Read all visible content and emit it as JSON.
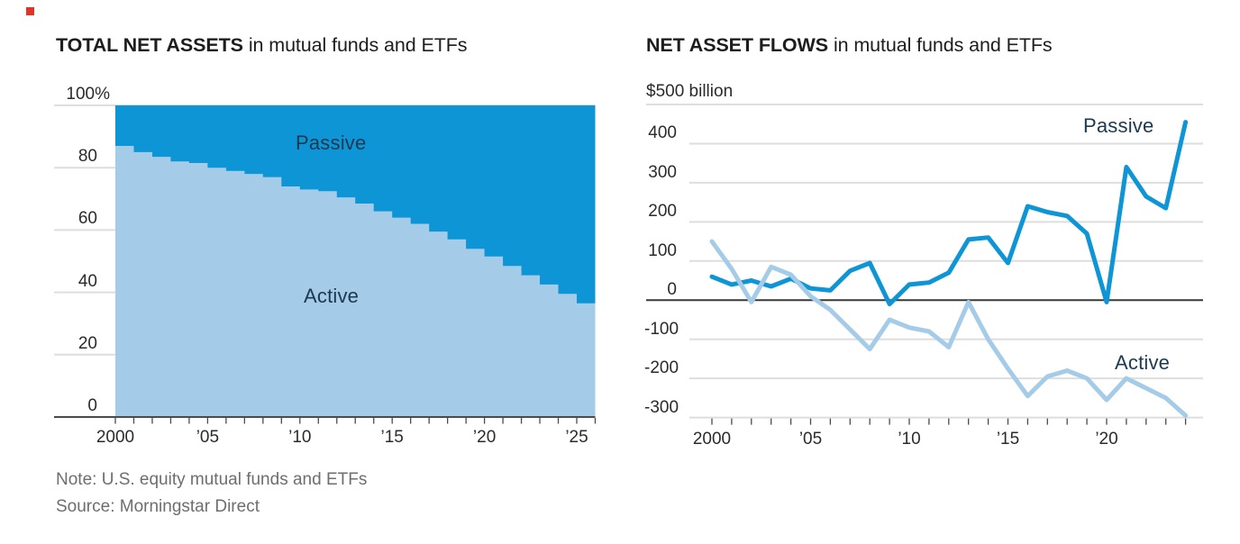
{
  "page": {
    "red_marker_color": "#e03427"
  },
  "colors": {
    "passive": "#0d95d5",
    "active": "#a4cbe8",
    "grid": "#dedede",
    "axis": "#4b4b4b",
    "zero_line": "#383838",
    "tick": "#4b4b4b",
    "series_label_text": "#1b3950",
    "axis_text": "#2b2b2b",
    "title_text": "#1d1d1d",
    "note_text": "#6e6e6e"
  },
  "notes": {
    "note": "Note: U.S. equity mutual funds and ETFs",
    "source": "Source: Morningstar Direct"
  },
  "chart_data": [
    {
      "type": "area",
      "step": true,
      "stacked": true,
      "title_bold": "TOTAL NET ASSETS",
      "title_rest": "in mutual funds and ETFs",
      "unit": "% of total",
      "ylim": [
        0,
        100
      ],
      "years": [
        2000,
        2001,
        2002,
        2003,
        2004,
        2005,
        2006,
        2007,
        2008,
        2009,
        2010,
        2011,
        2012,
        2013,
        2014,
        2015,
        2016,
        2017,
        2018,
        2019,
        2020,
        2021,
        2022,
        2023,
        2024,
        2025
      ],
      "series": [
        {
          "name": "Active",
          "color_key": "active",
          "values": [
            87,
            85,
            83.5,
            82,
            81.5,
            80,
            79,
            78,
            77,
            74,
            73,
            72.5,
            70.5,
            68.5,
            66,
            64,
            62,
            59.5,
            57,
            54,
            51.5,
            48.5,
            45.5,
            42.5,
            39.5,
            36.5
          ]
        },
        {
          "name": "Passive",
          "color_key": "passive",
          "values": [
            13,
            15,
            16.5,
            18,
            18.5,
            20,
            21,
            22,
            23,
            26,
            27,
            27.5,
            29.5,
            31.5,
            34,
            36,
            38,
            40.5,
            43,
            46,
            48.5,
            51.5,
            54.5,
            57.5,
            60.5,
            63.5
          ]
        }
      ],
      "y_ticks": [
        {
          "value": 100,
          "label": "100%"
        },
        {
          "value": 80,
          "label": "80"
        },
        {
          "value": 60,
          "label": "60"
        },
        {
          "value": 40,
          "label": "40"
        },
        {
          "value": 20,
          "label": "20"
        },
        {
          "value": 0,
          "label": "0"
        }
      ],
      "x_tick_labels": [
        {
          "year": 2000,
          "label": "2000"
        },
        {
          "year": 2005,
          "label": "’05"
        },
        {
          "year": 2010,
          "label": "’10"
        },
        {
          "year": 2015,
          "label": "’15"
        },
        {
          "year": 2020,
          "label": "’20"
        },
        {
          "year": 2025,
          "label": "’25"
        }
      ]
    },
    {
      "type": "line",
      "title_bold": "NET ASSET FLOWS",
      "title_rest": "in mutual funds and ETFs",
      "unit": "$ billion",
      "ylim": [
        -300,
        500
      ],
      "years": [
        2000,
        2001,
        2002,
        2003,
        2004,
        2005,
        2006,
        2007,
        2008,
        2009,
        2010,
        2011,
        2012,
        2013,
        2014,
        2015,
        2016,
        2017,
        2018,
        2019,
        2020,
        2021,
        2022,
        2023,
        2024
      ],
      "series": [
        {
          "name": "Passive",
          "color_key": "passive",
          "values": [
            60,
            40,
            50,
            35,
            55,
            30,
            25,
            75,
            95,
            -10,
            40,
            45,
            70,
            155,
            160,
            95,
            240,
            225,
            215,
            170,
            -5,
            340,
            265,
            235,
            455
          ]
        },
        {
          "name": "Active",
          "color_key": "active",
          "values": [
            150,
            80,
            -5,
            85,
            65,
            10,
            -25,
            -75,
            -125,
            -50,
            -70,
            -80,
            -120,
            -5,
            -100,
            -175,
            -245,
            -195,
            -180,
            -200,
            -255,
            -200,
            -225,
            -250,
            -295
          ]
        }
      ],
      "y_ticks": [
        {
          "value": 500,
          "label": "$500 billion"
        },
        {
          "value": 400,
          "label": "400"
        },
        {
          "value": 300,
          "label": "300"
        },
        {
          "value": 200,
          "label": "200"
        },
        {
          "value": 100,
          "label": "100"
        },
        {
          "value": 0,
          "label": "0"
        },
        {
          "value": -100,
          "label": "-100"
        },
        {
          "value": -200,
          "label": "-200"
        },
        {
          "value": -300,
          "label": "-300"
        }
      ],
      "x_tick_labels": [
        {
          "year": 2000,
          "label": "2000"
        },
        {
          "year": 2005,
          "label": "’05"
        },
        {
          "year": 2010,
          "label": "’10"
        },
        {
          "year": 2015,
          "label": "’15"
        },
        {
          "year": 2020,
          "label": "’20"
        }
      ]
    }
  ]
}
